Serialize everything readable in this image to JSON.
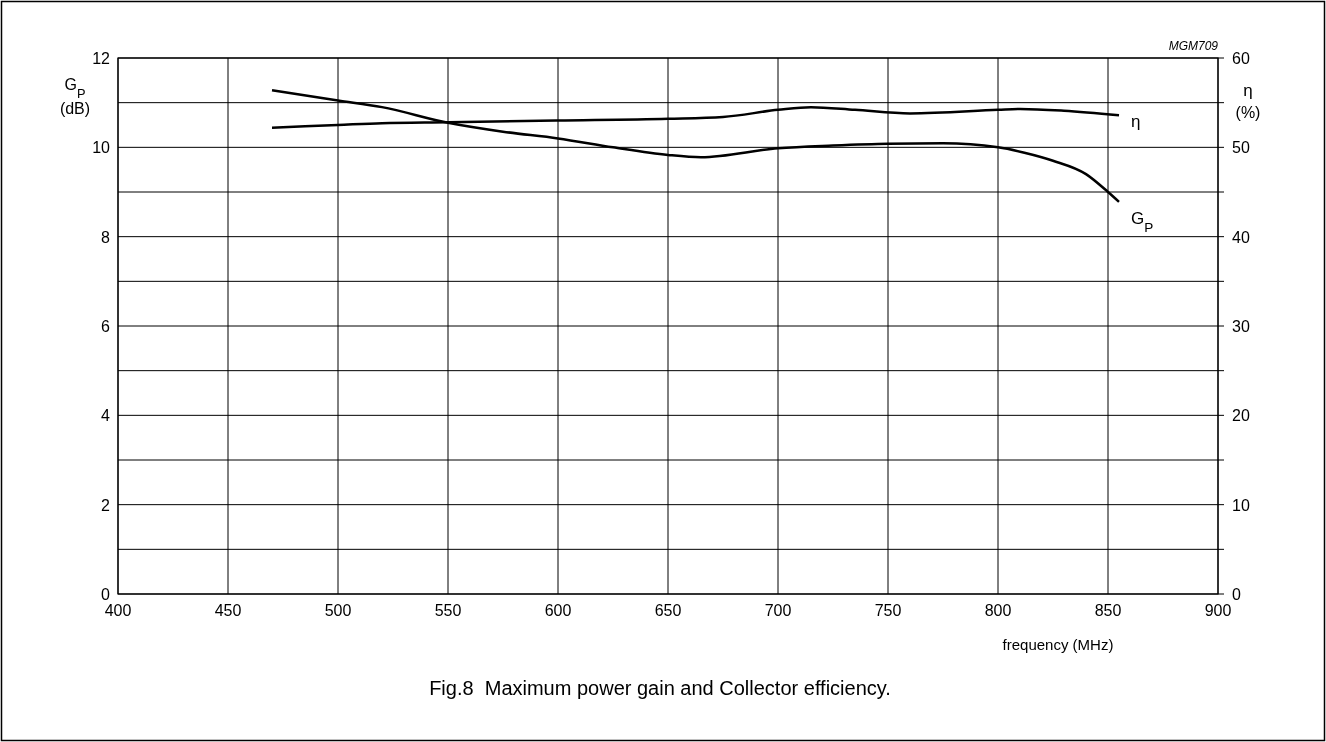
{
  "chart_data": {
    "type": "line",
    "title": "Fig.8  Maximum power gain and Collector efficiency.",
    "annotations": [
      "MGM709"
    ],
    "xlabel": "frequency (MHz)",
    "ylabel": "G$_{P}$ (dB)",
    "y2label": "η (%)",
    "xlim": [
      400,
      900
    ],
    "xticks": [
      400,
      450,
      500,
      550,
      600,
      650,
      700,
      750,
      800,
      850,
      900
    ],
    "ylim": [
      0,
      12
    ],
    "yticks": [
      0,
      {
        "value": 1,
        "label": null
      },
      2,
      {
        "value": 3,
        "label": null
      },
      4,
      {
        "value": 5,
        "label": null
      },
      6,
      {
        "value": 7,
        "label": null
      },
      8,
      {
        "value": 9,
        "label": null
      },
      10,
      {
        "value": 11,
        "label": null
      },
      12
    ],
    "y2lim": [
      0,
      60
    ],
    "y2ticks": [
      0,
      {
        "value": 5,
        "label": null
      },
      10,
      {
        "value": 15,
        "label": null
      },
      20,
      {
        "value": 25,
        "label": null
      },
      30,
      {
        "value": 35,
        "label": null
      },
      40,
      {
        "value": 45,
        "label": null
      },
      50,
      {
        "value": 55,
        "label": null
      },
      60
    ],
    "grid": true,
    "legend": false,
    "marker": "none",
    "line_style": "solid",
    "series": [
      {
        "name": "G$_{P}$",
        "color": "#000000",
        "x": [
          470,
          500,
          520,
          550,
          575,
          600,
          625,
          650,
          665,
          700,
          725,
          750,
          775,
          800,
          812,
          825,
          840,
          850,
          855
        ],
        "values": [
          11.28,
          11.05,
          10.9,
          10.55,
          10.35,
          10.2,
          10.0,
          9.83,
          9.78,
          9.98,
          10.04,
          10.08,
          10.09,
          10.0,
          9.88,
          9.7,
          9.4,
          9.0,
          8.78
        ]
      },
      {
        "name": "η",
        "color": "#000000",
        "axis": "y2",
        "x": [
          470,
          500,
          520,
          550,
          600,
          650,
          675,
          700,
          715,
          735,
          760,
          800,
          810,
          830,
          855
        ],
        "values": [
          52.2,
          52.5,
          52.7,
          52.8,
          53.0,
          53.2,
          53.4,
          54.2,
          54.5,
          54.2,
          53.8,
          54.2,
          54.3,
          54.1,
          53.6
        ]
      }
    ]
  }
}
